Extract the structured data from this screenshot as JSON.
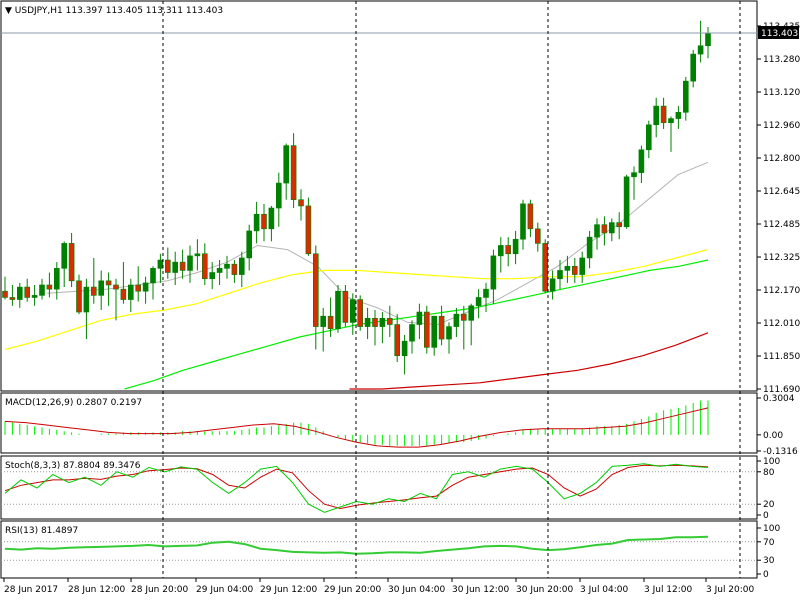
{
  "header": {
    "symbol": "USDJPY,H1",
    "ohlc": "113.397 113.405 113.311 113.403"
  },
  "price_axis": {
    "ticks": [
      "113.435",
      "113.280",
      "113.120",
      "112.960",
      "112.800",
      "112.645",
      "112.485",
      "112.325",
      "112.170",
      "112.010",
      "111.850",
      "111.690"
    ],
    "current": "113.403"
  },
  "time_axis": {
    "labels": [
      "28 Jun 2017",
      "28 Jun 12:00",
      "28 Jun 20:00",
      "29 Jun 04:00",
      "29 Jun 12:00",
      "29 Jun 20:00",
      "30 Jun 04:00",
      "30 Jun 12:00",
      "30 Jun 20:00",
      "3 Jul 04:00",
      "3 Jul 12:00",
      "3 Jul 20:00"
    ]
  },
  "panels": {
    "macd": {
      "title": "MACD(12,26,9) 0.2807 0.2197",
      "ticks": [
        "0.3004",
        "0.00",
        "-0.1316"
      ]
    },
    "stoch": {
      "title": "Stoch(8,3,3) 87.8804 89.3476",
      "ticks": [
        "100",
        "80",
        "20",
        "0"
      ]
    },
    "rsi": {
      "title": "RSI(13) 81.4897",
      "ticks": [
        "100",
        "70",
        "30",
        "0"
      ]
    }
  },
  "colors": {
    "bull": "#008000",
    "bear": "#d32f00",
    "ma_fast": "#b4b4b4",
    "ma_mid": "#ffff00",
    "ma_slow": "#00ee00",
    "ma_long": "#cc0000",
    "macd_hist": "#00ee00",
    "signal": "#cc0000",
    "stoch_k": "#00cc00",
    "stoch_d": "#cc0000",
    "rsi": "#33cc33"
  },
  "chart_data": {
    "type": "candlestick",
    "timeframe": "H1",
    "start": "28 Jun 2017",
    "price_range": [
      111.69,
      113.5
    ],
    "candles": [
      [
        112.16,
        112.23,
        112.12,
        112.13
      ],
      [
        112.13,
        112.19,
        112.09,
        112.12
      ],
      [
        112.12,
        112.2,
        112.08,
        112.18
      ],
      [
        112.18,
        112.22,
        112.11,
        112.13
      ],
      [
        112.13,
        112.19,
        112.09,
        112.14
      ],
      [
        112.14,
        112.22,
        112.12,
        112.19
      ],
      [
        112.19,
        112.25,
        112.13,
        112.17
      ],
      [
        112.17,
        112.3,
        112.12,
        112.27
      ],
      [
        112.27,
        112.4,
        112.18,
        112.39
      ],
      [
        112.39,
        112.44,
        112.18,
        112.21
      ],
      [
        112.21,
        112.24,
        112.05,
        112.06
      ],
      [
        112.06,
        112.22,
        111.93,
        112.18
      ],
      [
        112.18,
        112.32,
        112.1,
        112.14
      ],
      [
        112.14,
        112.26,
        112.07,
        112.21
      ],
      [
        112.21,
        112.25,
        112.09,
        112.19
      ],
      [
        112.19,
        112.22,
        112.02,
        112.17
      ],
      [
        112.17,
        112.3,
        112.1,
        112.12
      ],
      [
        112.12,
        112.22,
        112.06,
        112.19
      ],
      [
        112.19,
        112.28,
        112.11,
        112.16
      ],
      [
        112.16,
        112.23,
        112.1,
        112.2
      ],
      [
        112.2,
        112.28,
        112.12,
        112.27
      ],
      [
        112.27,
        112.34,
        112.2,
        112.31
      ],
      [
        112.31,
        112.37,
        112.22,
        112.25
      ],
      [
        112.25,
        112.35,
        112.19,
        112.3
      ],
      [
        112.3,
        112.36,
        112.22,
        112.26
      ],
      [
        112.26,
        112.38,
        112.2,
        112.33
      ],
      [
        112.33,
        112.41,
        112.26,
        112.34
      ],
      [
        112.34,
        112.39,
        112.19,
        112.22
      ],
      [
        112.22,
        112.3,
        112.17,
        112.25
      ],
      [
        112.25,
        112.31,
        112.19,
        112.27
      ],
      [
        112.27,
        112.33,
        112.22,
        112.29
      ],
      [
        112.29,
        112.31,
        112.2,
        112.24
      ],
      [
        112.24,
        112.35,
        112.18,
        112.32
      ],
      [
        112.32,
        112.48,
        112.26,
        112.45
      ],
      [
        112.45,
        112.59,
        112.39,
        112.53
      ],
      [
        112.53,
        112.58,
        112.4,
        112.46
      ],
      [
        112.46,
        112.57,
        112.4,
        112.56
      ],
      [
        112.56,
        112.73,
        112.47,
        112.68
      ],
      [
        112.68,
        112.87,
        112.6,
        112.86
      ],
      [
        112.86,
        112.92,
        112.56,
        112.6
      ],
      [
        112.6,
        112.65,
        112.5,
        112.57
      ],
      [
        112.57,
        112.61,
        112.33,
        112.34
      ],
      [
        112.34,
        112.38,
        111.88,
        111.99
      ],
      [
        111.99,
        112.08,
        111.87,
        112.04
      ],
      [
        112.04,
        112.13,
        111.94,
        111.98
      ],
      [
        111.98,
        112.19,
        111.96,
        112.16
      ],
      [
        112.16,
        112.19,
        111.99,
        112.01
      ],
      [
        112.01,
        112.15,
        111.95,
        112.12
      ],
      [
        112.12,
        112.14,
        111.97,
        111.99
      ],
      [
        111.99,
        112.08,
        111.93,
        112.03
      ],
      [
        112.03,
        112.07,
        111.9,
        111.99
      ],
      [
        111.99,
        112.06,
        111.91,
        112.03
      ],
      [
        112.03,
        112.09,
        111.94,
        112.0
      ],
      [
        112.0,
        112.05,
        111.82,
        111.85
      ],
      [
        111.85,
        111.95,
        111.76,
        111.92
      ],
      [
        111.92,
        112.02,
        111.86,
        112.0
      ],
      [
        112.0,
        112.1,
        111.93,
        112.06
      ],
      [
        112.06,
        112.09,
        111.86,
        111.89
      ],
      [
        111.89,
        112.03,
        111.85,
        112.04
      ],
      [
        112.04,
        112.09,
        111.9,
        111.93
      ],
      [
        111.93,
        112.01,
        111.86,
        111.99
      ],
      [
        111.99,
        112.08,
        111.94,
        112.05
      ],
      [
        112.05,
        112.09,
        111.88,
        112.02
      ],
      [
        112.02,
        112.1,
        111.9,
        112.09
      ],
      [
        112.09,
        112.17,
        112.03,
        112.13
      ],
      [
        112.13,
        112.2,
        112.06,
        112.17
      ],
      [
        112.17,
        112.36,
        112.1,
        112.33
      ],
      [
        112.33,
        112.42,
        112.25,
        112.38
      ],
      [
        112.38,
        112.42,
        112.28,
        112.34
      ],
      [
        112.34,
        112.45,
        112.29,
        112.41
      ],
      [
        112.41,
        112.6,
        112.36,
        112.58
      ],
      [
        112.58,
        112.6,
        112.42,
        112.46
      ],
      [
        112.46,
        112.49,
        112.35,
        112.39
      ],
      [
        112.39,
        112.41,
        112.15,
        112.16
      ],
      [
        112.16,
        112.26,
        112.12,
        112.22
      ],
      [
        112.22,
        112.31,
        112.17,
        112.26
      ],
      [
        112.26,
        112.33,
        112.2,
        112.28
      ],
      [
        112.28,
        112.32,
        112.2,
        112.24
      ],
      [
        112.24,
        112.35,
        112.2,
        112.32
      ],
      [
        112.32,
        112.45,
        112.27,
        112.42
      ],
      [
        112.42,
        112.51,
        112.36,
        112.48
      ],
      [
        112.48,
        112.52,
        112.38,
        112.44
      ],
      [
        112.44,
        112.51,
        112.4,
        112.49
      ],
      [
        112.49,
        112.54,
        112.41,
        112.47
      ],
      [
        112.47,
        112.72,
        112.46,
        112.71
      ],
      [
        112.71,
        112.76,
        112.6,
        112.73
      ],
      [
        112.73,
        112.86,
        112.68,
        112.84
      ],
      [
        112.84,
        112.98,
        112.8,
        112.96
      ],
      [
        112.96,
        113.09,
        112.9,
        113.05
      ],
      [
        113.05,
        113.09,
        112.94,
        112.97
      ],
      [
        112.97,
        113.0,
        112.83,
        112.99
      ],
      [
        112.99,
        113.05,
        112.94,
        113.02
      ],
      [
        113.02,
        113.19,
        112.98,
        113.17
      ],
      [
        113.17,
        113.32,
        113.14,
        113.3
      ],
      [
        113.3,
        113.46,
        113.26,
        113.34
      ],
      [
        113.34,
        113.43,
        113.28,
        113.4
      ]
    ],
    "moving_averages": [
      {
        "color": "ma_fast",
        "values": [
          112.15,
          112.16,
          112.17,
          112.19,
          112.21,
          112.25,
          112.3,
          112.38,
          112.36,
          112.28,
          112.13,
          112.08,
          112.01,
          112.0,
          112.06,
          112.12,
          112.2,
          112.28,
          112.39,
          112.48,
          112.6,
          112.72,
          112.78
        ]
      },
      {
        "color": "ma_mid",
        "values": [
          111.88,
          111.92,
          111.97,
          112.02,
          112.05,
          112.07,
          112.1,
          112.15,
          112.2,
          112.24,
          112.26,
          112.26,
          112.25,
          112.24,
          112.23,
          112.22,
          112.22,
          112.23,
          112.23,
          112.25,
          112.28,
          112.32,
          112.36
        ]
      },
      {
        "color": "ma_slow",
        "values": [
          111.69,
          111.73,
          111.78,
          111.82,
          111.86,
          111.9,
          111.94,
          111.97,
          112.0,
          112.02,
          112.04,
          112.06,
          112.08,
          112.11,
          112.14,
          112.17,
          112.2,
          112.23,
          112.26,
          112.28,
          112.31
        ]
      },
      {
        "color": "ma_long",
        "values": [
          111.69,
          111.69,
          111.7,
          111.71,
          111.72,
          111.74,
          111.76,
          111.78,
          111.81,
          111.85,
          111.9,
          111.96
        ]
      }
    ],
    "macd": {
      "range": [
        -0.1316,
        0.3004
      ],
      "histogram": [
        0.11,
        0.1,
        0.09,
        0.08,
        0.07,
        0.06,
        0.05,
        0.04,
        0.03,
        0.02,
        0.01,
        0.0,
        0.0,
        0.01,
        0.01,
        0.01,
        0.02,
        0.02,
        0.02,
        0.02,
        0.02,
        0.02,
        0.02,
        0.02,
        0.03,
        0.03,
        0.03,
        0.03,
        0.03,
        0.03,
        0.03,
        0.03,
        0.04,
        0.05,
        0.06,
        0.06,
        0.07,
        0.08,
        0.09,
        0.1,
        0.1,
        0.09,
        0.06,
        0.03,
        0.0,
        -0.02,
        -0.04,
        -0.05,
        -0.06,
        -0.07,
        -0.08,
        -0.08,
        -0.09,
        -0.09,
        -0.09,
        -0.09,
        -0.09,
        -0.09,
        -0.08,
        -0.08,
        -0.07,
        -0.06,
        -0.06,
        -0.05,
        -0.04,
        -0.03,
        -0.01,
        0.0,
        0.01,
        0.02,
        0.04,
        0.05,
        0.05,
        0.05,
        0.05,
        0.05,
        0.05,
        0.05,
        0.05,
        0.06,
        0.07,
        0.07,
        0.07,
        0.08,
        0.09,
        0.11,
        0.13,
        0.15,
        0.18,
        0.2,
        0.21,
        0.22,
        0.24,
        0.26,
        0.28,
        0.28
      ],
      "signal": [
        0.11,
        0.1,
        0.08,
        0.06,
        0.04,
        0.02,
        0.01,
        0.01,
        0.01,
        0.02,
        0.04,
        0.06,
        0.08,
        0.09,
        0.07,
        0.03,
        -0.02,
        -0.06,
        -0.09,
        -0.1,
        -0.1,
        -0.08,
        -0.05,
        -0.01,
        0.02,
        0.04,
        0.05,
        0.05,
        0.05,
        0.06,
        0.07,
        0.1,
        0.14,
        0.18,
        0.22
      ]
    },
    "stochastic": {
      "range": [
        0,
        100
      ],
      "k": [
        40,
        65,
        50,
        75,
        60,
        70,
        55,
        80,
        70,
        88,
        80,
        89,
        85,
        60,
        40,
        60,
        85,
        90,
        60,
        20,
        5,
        15,
        25,
        20,
        30,
        25,
        40,
        30,
        75,
        80,
        70,
        85,
        90,
        85,
        60,
        30,
        40,
        60,
        90,
        92,
        95,
        90,
        94,
        90,
        88
      ],
      "d": [
        45,
        55,
        60,
        65,
        65,
        68,
        66,
        72,
        75,
        82,
        84,
        87,
        86,
        75,
        55,
        50,
        70,
        85,
        78,
        45,
        20,
        12,
        18,
        22,
        25,
        28,
        32,
        35,
        55,
        70,
        75,
        80,
        85,
        87,
        75,
        50,
        35,
        48,
        75,
        88,
        92,
        91,
        92,
        91,
        89
      ]
    },
    "rsi": {
      "range": [
        0,
        100
      ],
      "values": [
        55,
        53,
        56,
        55,
        57,
        58,
        59,
        60,
        61,
        63,
        60,
        61,
        62,
        68,
        70,
        65,
        55,
        52,
        48,
        47,
        46,
        47,
        44,
        45,
        47,
        47,
        46,
        50,
        53,
        56,
        60,
        61,
        60,
        55,
        52,
        54,
        58,
        63,
        66,
        74,
        75,
        76,
        80,
        80,
        81
      ]
    }
  }
}
